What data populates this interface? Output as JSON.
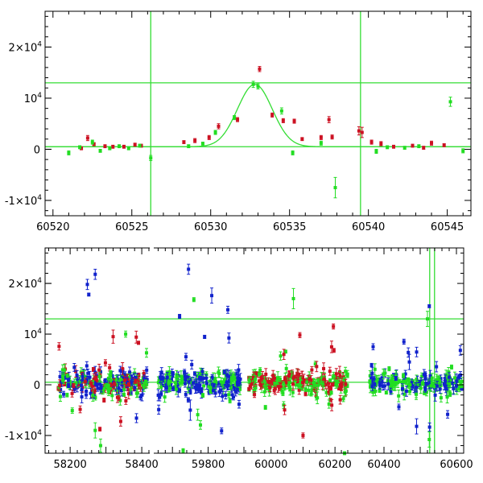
{
  "colors": {
    "red": "#cc1122",
    "green": "#22dd22",
    "blue": "#1122cc",
    "line": "#33dd33"
  },
  "chart_data": [
    {
      "type": "scatter",
      "panel": "top",
      "xlim": [
        60519.5,
        60546.5
      ],
      "ylim": [
        -13000,
        27000
      ],
      "x_ticks": [
        60520,
        60525,
        60530,
        60535,
        60540,
        60545
      ],
      "x_tick_labels": [
        "60520",
        "60525",
        "60530",
        "60535",
        "60540",
        "60545"
      ],
      "y_ticks": [
        -10000,
        0,
        10000,
        20000
      ],
      "y_tick_labels": [
        {
          "base": "-1×10",
          "exp": "4"
        },
        {
          "base": "0",
          "exp": ""
        },
        {
          "base": "10",
          "exp": "4"
        },
        {
          "base": "2×10",
          "exp": "4"
        }
      ],
      "hlines": [
        13000,
        500
      ],
      "vlines": [
        60526.2,
        60539.5
      ],
      "model_curve": {
        "t0": 60532.8,
        "peak": 12700,
        "baseline": 500,
        "tE": 1.1
      },
      "series": [
        {
          "color": "red",
          "points": [
            [
              60521.8,
              200,
              300
            ],
            [
              60522.2,
              2200,
              500
            ],
            [
              60522.6,
              1000,
              300
            ],
            [
              60523.3,
              600,
              300
            ],
            [
              60523.8,
              500,
              300
            ],
            [
              60524.5,
              500,
              300
            ],
            [
              60525.2,
              900,
              300
            ],
            [
              60525.6,
              700,
              300
            ],
            [
              60528.3,
              1400,
              300
            ],
            [
              60529.0,
              1700,
              400
            ],
            [
              60529.9,
              2300,
              400
            ],
            [
              60530.5,
              4500,
              500
            ],
            [
              60531.7,
              5800,
              400
            ],
            [
              60533.1,
              15700,
              500
            ],
            [
              60533.9,
              6700,
              400
            ],
            [
              60534.6,
              5600,
              400
            ],
            [
              60535.3,
              5500,
              400
            ],
            [
              60535.8,
              2000,
              300
            ],
            [
              60537.0,
              2300,
              400
            ],
            [
              60537.5,
              5800,
              600
            ],
            [
              60537.7,
              2400,
              400
            ],
            [
              60539.4,
              3600,
              800
            ],
            [
              60539.6,
              3300,
              1000
            ],
            [
              60540.2,
              1400,
              400
            ],
            [
              60540.8,
              1100,
              400
            ],
            [
              60541.6,
              500,
              300
            ],
            [
              60542.8,
              700,
              300
            ],
            [
              60543.5,
              300,
              300
            ],
            [
              60544.0,
              1200,
              400
            ],
            [
              60544.8,
              800,
              300
            ]
          ]
        },
        {
          "color": "green",
          "points": [
            [
              60521.0,
              -700,
              400
            ],
            [
              60521.7,
              400,
              300
            ],
            [
              60522.5,
              1400,
              400
            ],
            [
              60523.0,
              -300,
              300
            ],
            [
              60523.6,
              200,
              300
            ],
            [
              60524.2,
              600,
              300
            ],
            [
              60524.8,
              200,
              300
            ],
            [
              60525.5,
              700,
              300
            ],
            [
              60526.2,
              -1700,
              500
            ],
            [
              60528.6,
              600,
              300
            ],
            [
              60529.5,
              1100,
              300
            ],
            [
              60530.3,
              3300,
              400
            ],
            [
              60531.5,
              6200,
              400
            ],
            [
              60532.7,
              12700,
              600
            ],
            [
              60533.0,
              12300,
              500
            ],
            [
              60534.5,
              7500,
              600
            ],
            [
              60535.2,
              -700,
              400
            ],
            [
              60537.0,
              1200,
              400
            ],
            [
              60537.9,
              -7500,
              2000
            ],
            [
              60540.5,
              -400,
              400
            ],
            [
              60541.2,
              400,
              300
            ],
            [
              60542.3,
              300,
              300
            ],
            [
              60543.2,
              600,
              300
            ],
            [
              60545.2,
              9300,
              900
            ],
            [
              60546.0,
              -300,
              400
            ]
          ]
        }
      ]
    },
    {
      "type": "scatter",
      "panel": "bottom",
      "segments": [
        {
          "xlim": [
            58130,
            58420
          ],
          "x_ticks": [
            58200,
            58400
          ],
          "x_tick_labels": [
            "58200",
            "58400"
          ]
        },
        {
          "xlim": [
            59650,
            59900
          ],
          "x_ticks": [
            59800
          ],
          "x_tick_labels": [
            "59800"
          ]
        },
        {
          "xlim": [
            59915,
            60245
          ],
          "x_ticks": [
            60000,
            60200
          ],
          "x_tick_labels": [
            "60000",
            "60200"
          ]
        },
        {
          "xlim": [
            60340,
            60620
          ],
          "x_ticks": [
            60400,
            60600
          ],
          "x_tick_labels": [
            "60400",
            "60600"
          ]
        }
      ],
      "ylim": [
        -13500,
        27000
      ],
      "y_ticks": [
        -10000,
        0,
        10000,
        20000
      ],
      "y_tick_labels": [
        {
          "base": "-1×10",
          "exp": "4"
        },
        {
          "base": "0",
          "exp": ""
        },
        {
          "base": "10",
          "exp": "4"
        },
        {
          "base": "2×10",
          "exp": "4"
        }
      ],
      "hlines": [
        13000,
        500
      ],
      "vlines": [
        60526.2,
        60539.5
      ],
      "seasons": [
        {
          "xrange": [
            58165,
            58415
          ],
          "colors": [
            "red",
            "green",
            "blue"
          ],
          "n": 260,
          "spread": 1300,
          "tail": 9000
        },
        {
          "xrange": [
            59660,
            59890
          ],
          "colors": [
            "green",
            "blue"
          ],
          "n": 200,
          "spread": 1300,
          "tail": 9000
        },
        {
          "xrange": [
            59930,
            60240
          ],
          "colors": [
            "red",
            "green"
          ],
          "n": 230,
          "spread": 1100,
          "tail": 9000
        },
        {
          "xrange": [
            60360,
            60615
          ],
          "colors": [
            "green",
            "blue"
          ],
          "n": 200,
          "spread": 1100,
          "tail": 8000
        }
      ],
      "highlights": [
        {
          "color": "blue",
          "x": 58248,
          "y": 19800,
          "err": 1000
        },
        {
          "color": "blue",
          "x": 58270,
          "y": 21800,
          "err": 1000
        },
        {
          "color": "blue",
          "x": 58252,
          "y": 17800,
          "err": 300
        },
        {
          "color": "blue",
          "x": 59745,
          "y": 22800,
          "err": 1000
        },
        {
          "color": "blue",
          "x": 59810,
          "y": 17600,
          "err": 1500
        },
        {
          "color": "blue",
          "x": 59855,
          "y": 14800,
          "err": 700
        },
        {
          "color": "blue",
          "x": 59720,
          "y": 13500,
          "err": 400
        },
        {
          "color": "green",
          "x": 59760,
          "y": 16800,
          "err": 400
        },
        {
          "color": "green",
          "x": 60070,
          "y": 17000,
          "err": 2000
        },
        {
          "color": "red",
          "x": 60040,
          "y": 6000,
          "err": 1000
        },
        {
          "color": "red",
          "x": 60090,
          "y": 9800,
          "err": 500
        },
        {
          "color": "red",
          "x": 60195,
          "y": 11500,
          "err": 500
        },
        {
          "color": "red",
          "x": 58320,
          "y": 9500,
          "err": 1300
        },
        {
          "color": "green",
          "x": 58355,
          "y": 10000,
          "err": 600
        },
        {
          "color": "green",
          "x": 58285,
          "y": -12000,
          "err": 1300
        },
        {
          "color": "green",
          "x": 58270,
          "y": -9000,
          "err": 1500
        },
        {
          "color": "green",
          "x": 59730,
          "y": -13000,
          "err": 400
        },
        {
          "color": "green",
          "x": 60230,
          "y": -13500,
          "err": 300
        },
        {
          "color": "red",
          "x": 60100,
          "y": -10000,
          "err": 500
        },
        {
          "color": "blue",
          "x": 60525,
          "y": 15500,
          "err": 300
        },
        {
          "color": "green",
          "x": 60520,
          "y": 13000,
          "err": 1500
        },
        {
          "color": "green",
          "x": 60525,
          "y": -10800,
          "err": 1500
        },
        {
          "color": "blue",
          "x": 60490,
          "y": -8200,
          "err": 1500
        },
        {
          "color": "blue",
          "x": 60370,
          "y": 7500,
          "err": 600
        },
        {
          "color": "blue",
          "x": 60455,
          "y": 8500,
          "err": 500
        },
        {
          "color": "blue",
          "x": 60470,
          "y": 4500,
          "err": 1500
        },
        {
          "color": "blue",
          "x": 59750,
          "y": -5000,
          "err": 2000
        }
      ]
    }
  ]
}
